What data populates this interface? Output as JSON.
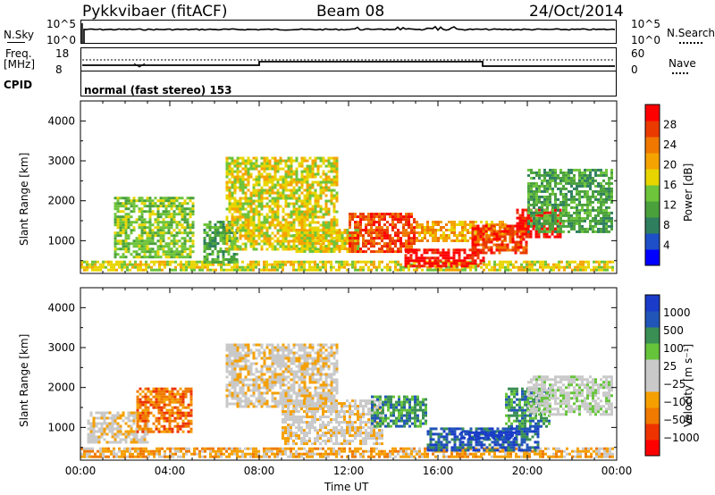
{
  "header": {
    "radar": "Pykkvibaer (fitACF)",
    "beam": "Beam 08",
    "date": "24/Oct/2014"
  },
  "status_panels": {
    "noise": {
      "left_label": "N.Sky",
      "left_ticks": [
        "10^5",
        "10^0"
      ],
      "right_label": "N.Search",
      "right_ticks": [
        "10^5",
        "10^0"
      ]
    },
    "freq": {
      "left_label_1": "Freq.",
      "left_label_2": "[MHz]",
      "left_ticks": [
        "18",
        "8"
      ],
      "right_label": "Nave",
      "right_ticks": [
        "60",
        "0"
      ]
    },
    "cpid": {
      "label": "CPID",
      "text": "normal (fast stereo) 153"
    }
  },
  "colors": {
    "scale_power": [
      "#0000ff",
      "#1e4fc8",
      "#2f7f5f",
      "#4aa13c",
      "#6ec43a",
      "#e8d500",
      "#f5a300",
      "#f07800",
      "#ea3a00",
      "#ff0000"
    ],
    "scale_velocity": [
      "#ff0000",
      "#ee3300",
      "#f07a00",
      "#f5a000",
      "#c9c9c9",
      "#c9c9c9",
      "#66c43a",
      "#3a8f55",
      "#2255b8",
      "#1a3cc8"
    ]
  },
  "chart_data": [
    {
      "type": "heatmap",
      "name": "power",
      "ylabel": "Slant Range [km]",
      "ylim": [
        180,
        4500
      ],
      "yticks": [
        "4000",
        "3000",
        "2000",
        "1000"
      ],
      "xlim": [
        0,
        24
      ],
      "xticks": [
        "00:00",
        "04:00",
        "08:00",
        "12:00",
        "16:00",
        "20:00",
        "00:00"
      ],
      "colorbar": {
        "label": "Power [dB]",
        "ticks": [
          "28",
          "24",
          "20",
          "16",
          "12",
          "8",
          "4"
        ],
        "range": [
          0,
          30
        ]
      },
      "regions": [
        {
          "t0": 0.0,
          "t1": 23.8,
          "r0": 250,
          "r1": 500,
          "level": 5
        },
        {
          "t0": 1.5,
          "t1": 5.0,
          "r0": 600,
          "r1": 2100,
          "level": 4
        },
        {
          "t0": 5.5,
          "t1": 7.0,
          "r0": 450,
          "r1": 1500,
          "level": 3
        },
        {
          "t0": 6.5,
          "t1": 11.5,
          "r0": 800,
          "r1": 3100,
          "level": 5
        },
        {
          "t0": 9.5,
          "t1": 12.5,
          "r0": 700,
          "r1": 1300,
          "level": 5
        },
        {
          "t0": 12.0,
          "t1": 15.0,
          "r0": 700,
          "r1": 1700,
          "level": 8
        },
        {
          "t0": 14.5,
          "t1": 18.0,
          "r0": 350,
          "r1": 800,
          "level": 9
        },
        {
          "t0": 15.0,
          "t1": 19.0,
          "r0": 1000,
          "r1": 1500,
          "level": 6
        },
        {
          "t0": 17.5,
          "t1": 20.0,
          "r0": 700,
          "r1": 1400,
          "level": 8
        },
        {
          "t0": 19.5,
          "t1": 21.5,
          "r0": 1100,
          "r1": 1800,
          "level": 9
        },
        {
          "t0": 20.0,
          "t1": 23.8,
          "r0": 1200,
          "r1": 2800,
          "level": 3
        }
      ]
    },
    {
      "type": "heatmap",
      "name": "velocity",
      "ylabel": "Slant Range [km]",
      "ylim": [
        180,
        4500
      ],
      "yticks": [
        "4000",
        "3000",
        "2000",
        "1000"
      ],
      "xlim": [
        0,
        24
      ],
      "xticks": [
        "00:00",
        "04:00",
        "08:00",
        "12:00",
        "16:00",
        "20:00",
        "00:00"
      ],
      "xlabel": "Time UT",
      "colorbar": {
        "label": "Velocity [m s⁻¹]",
        "ticks": [
          "1000",
          "500",
          "100",
          "25",
          "−25",
          "−100",
          "−500",
          "−1000"
        ],
        "range": [
          -1000,
          1000
        ]
      },
      "regions": [
        {
          "t0": 0.0,
          "t1": 23.8,
          "r0": 250,
          "r1": 500,
          "level": 3
        },
        {
          "t0": 0.3,
          "t1": 3.0,
          "r0": 600,
          "r1": 1400,
          "level": 4
        },
        {
          "t0": 2.5,
          "t1": 5.0,
          "r0": 900,
          "r1": 2000,
          "level": 2
        },
        {
          "t0": 6.5,
          "t1": 11.5,
          "r0": 1500,
          "r1": 3100,
          "level": 4
        },
        {
          "t0": 9.0,
          "t1": 13.5,
          "r0": 600,
          "r1": 1700,
          "level": 4
        },
        {
          "t0": 13.0,
          "t1": 15.5,
          "r0": 1000,
          "r1": 1800,
          "level": 7
        },
        {
          "t0": 15.5,
          "t1": 20.5,
          "r0": 400,
          "r1": 1000,
          "level": 8
        },
        {
          "t0": 17.0,
          "t1": 19.5,
          "r0": 700,
          "r1": 900,
          "level": 9
        },
        {
          "t0": 19.0,
          "t1": 21.0,
          "r0": 1000,
          "r1": 2000,
          "level": 7
        },
        {
          "t0": 20.0,
          "t1": 23.8,
          "r0": 1300,
          "r1": 2300,
          "level": 5
        }
      ]
    }
  ]
}
